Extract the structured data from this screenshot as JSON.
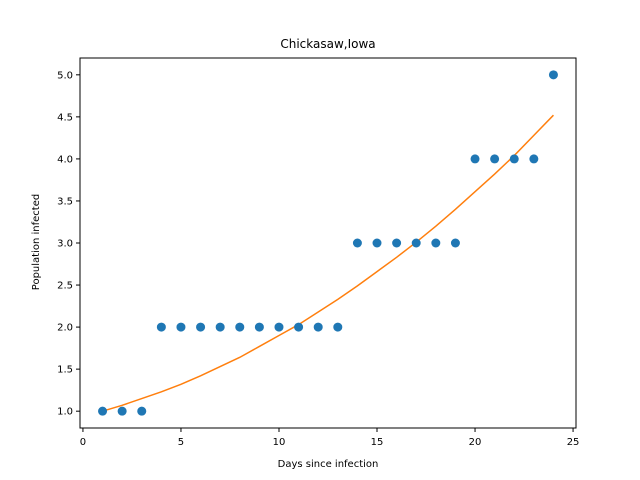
{
  "chart_data": {
    "type": "scatter",
    "title": "Chickasaw,Iowa",
    "xlabel": "Days since infection",
    "ylabel": "Population infected",
    "xlim": [
      -0.15,
      25.15
    ],
    "ylim": [
      0.8,
      5.2
    ],
    "xticks": [
      0,
      5,
      10,
      15,
      20,
      25
    ],
    "xtick_labels": [
      "0",
      "5",
      "10",
      "15",
      "20",
      "25"
    ],
    "yticks": [
      1.0,
      1.5,
      2.0,
      2.5,
      3.0,
      3.5,
      4.0,
      4.5,
      5.0
    ],
    "ytick_labels": [
      "1.0",
      "1.5",
      "2.0",
      "2.5",
      "3.0",
      "3.5",
      "4.0",
      "4.5",
      "5.0"
    ],
    "grid": false,
    "legend": "none",
    "series": [
      {
        "kind": "scatter",
        "color": "#1f77b4",
        "x": [
          1,
          2,
          3,
          4,
          5,
          6,
          7,
          8,
          9,
          10,
          11,
          12,
          13,
          14,
          15,
          16,
          17,
          18,
          19,
          20,
          21,
          22,
          23,
          24
        ],
        "y": [
          1,
          1,
          1,
          2,
          2,
          2,
          2,
          2,
          2,
          2,
          2,
          2,
          2,
          3,
          3,
          3,
          3,
          3,
          3,
          4,
          4,
          4,
          4,
          5
        ]
      },
      {
        "kind": "line",
        "color": "#ff7f0e",
        "x": [
          1,
          2,
          3,
          4,
          5,
          6,
          7,
          8,
          9,
          10,
          11,
          12,
          13,
          14,
          15,
          16,
          17,
          18,
          19,
          20,
          21,
          22,
          23,
          24
        ],
        "y": [
          1.0,
          1.07,
          1.15,
          1.23,
          1.32,
          1.42,
          1.53,
          1.64,
          1.77,
          1.9,
          2.03,
          2.18,
          2.33,
          2.49,
          2.66,
          2.83,
          3.01,
          3.2,
          3.4,
          3.61,
          3.82,
          4.04,
          4.28,
          4.52
        ]
      }
    ]
  }
}
